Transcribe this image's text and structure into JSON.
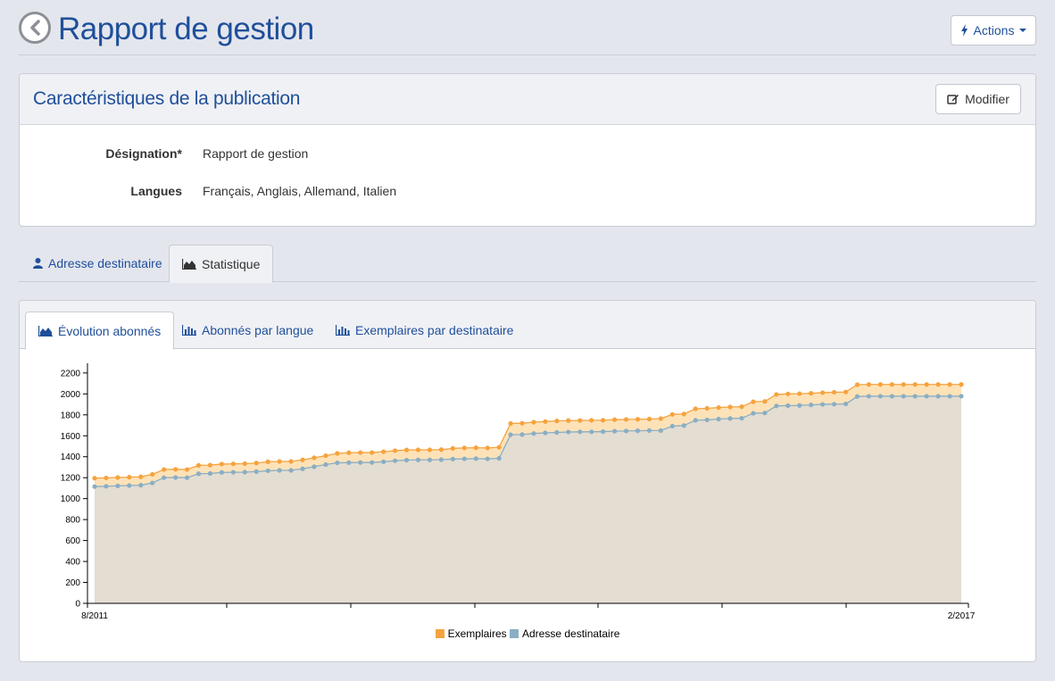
{
  "header": {
    "title": "Rapport de gestion",
    "actions_label": "Actions"
  },
  "panel": {
    "title": "Caractéristiques de la publication",
    "modifier_label": "Modifier",
    "fields": [
      {
        "label": "Désignation*",
        "value": "Rapport de gestion"
      },
      {
        "label": "Langues",
        "value": "Français, Anglais, Allemand, Italien"
      }
    ]
  },
  "outer_tabs": [
    {
      "label": "Adresse destinataire",
      "icon": "user-icon",
      "active": false
    },
    {
      "label": "Statistique",
      "icon": "area-chart-icon",
      "active": true
    }
  ],
  "chart_tabs": [
    {
      "label": "Évolution abonnés",
      "icon": "area-chart-icon",
      "active": true
    },
    {
      "label": "Abonnés par langue",
      "icon": "bar-chart-icon",
      "active": false
    },
    {
      "label": "Exemplaires par destinataire",
      "icon": "bar-chart-icon",
      "active": false
    }
  ],
  "colors": {
    "accent": "#1f4f9a",
    "exemplaires": "#f5a33e",
    "adresse": "#8aaec4",
    "area_fill": "#e4ddd2",
    "band_fill": "#fde2b8"
  },
  "chart_data": {
    "type": "area",
    "x_labels": {
      "start": "8/2011",
      "end": "2/2017"
    },
    "yticks": [
      0,
      200,
      400,
      600,
      800,
      1000,
      1200,
      1400,
      1600,
      1800,
      2000,
      2200
    ],
    "ylim": [
      0,
      2250
    ],
    "legend_position": "bottom-center",
    "series": [
      {
        "name": "Exemplaires",
        "color": "#f5a33e",
        "values": [
          1195,
          1198,
          1202,
          1205,
          1208,
          1232,
          1278,
          1280,
          1278,
          1318,
          1320,
          1330,
          1332,
          1334,
          1340,
          1352,
          1355,
          1355,
          1370,
          1390,
          1410,
          1432,
          1438,
          1440,
          1440,
          1448,
          1458,
          1465,
          1466,
          1466,
          1468,
          1480,
          1484,
          1486,
          1484,
          1490,
          1718,
          1720,
          1730,
          1736,
          1742,
          1745,
          1746,
          1748,
          1748,
          1754,
          1756,
          1758,
          1760,
          1764,
          1804,
          1808,
          1858,
          1862,
          1870,
          1875,
          1878,
          1925,
          1928,
          1995,
          2000,
          2002,
          2006,
          2012,
          2016,
          2018,
          2088,
          2090,
          2090,
          2090,
          2090,
          2090,
          2090,
          2090,
          2090,
          2090
        ]
      },
      {
        "name": "Adresse destinataire",
        "color": "#8aaec4",
        "values": [
          1115,
          1118,
          1122,
          1125,
          1128,
          1150,
          1200,
          1202,
          1200,
          1238,
          1240,
          1250,
          1252,
          1253,
          1258,
          1266,
          1270,
          1270,
          1285,
          1305,
          1325,
          1342,
          1344,
          1345,
          1345,
          1352,
          1362,
          1368,
          1370,
          1370,
          1372,
          1378,
          1380,
          1382,
          1380,
          1385,
          1610,
          1612,
          1622,
          1628,
          1632,
          1636,
          1638,
          1638,
          1640,
          1644,
          1646,
          1648,
          1650,
          1650,
          1692,
          1698,
          1748,
          1752,
          1760,
          1765,
          1768,
          1815,
          1818,
          1885,
          1888,
          1890,
          1895,
          1900,
          1902,
          1904,
          1975,
          1978,
          1978,
          1978,
          1978,
          1978,
          1978,
          1978,
          1978,
          1978
        ]
      }
    ]
  }
}
